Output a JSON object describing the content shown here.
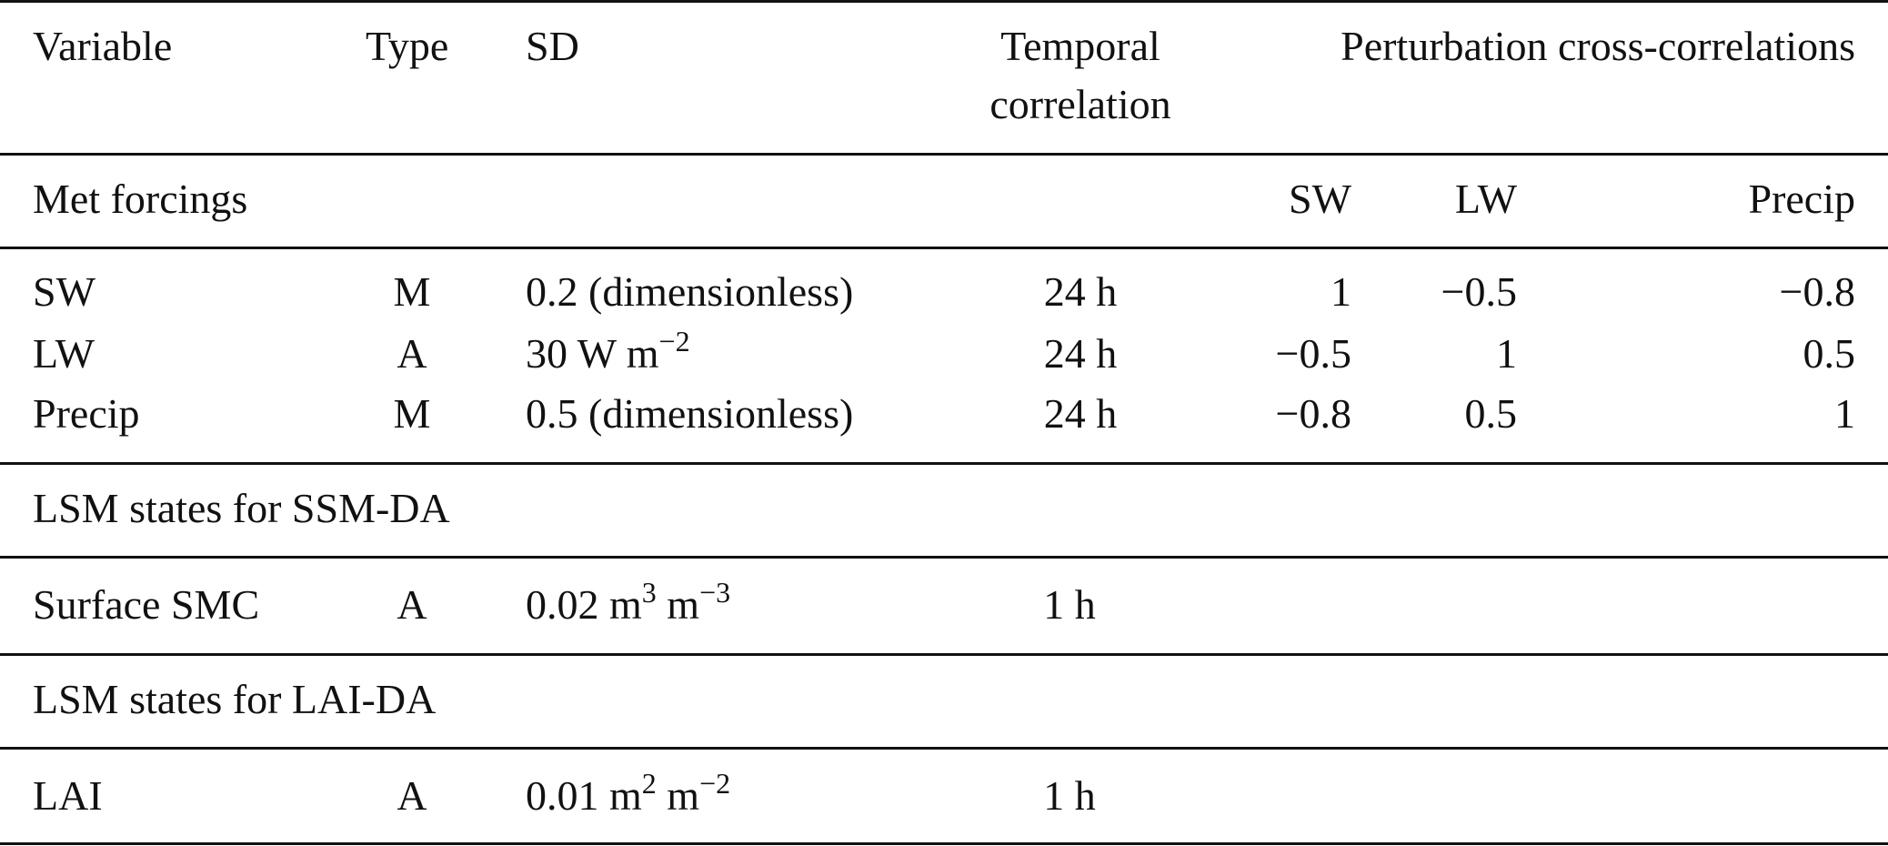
{
  "header": {
    "variable": "Variable",
    "type": "Type",
    "sd": "SD",
    "temporal_line1": "Temporal",
    "temporal_line2": "correlation",
    "perturbation": "Perturbation cross-correlations"
  },
  "sections": {
    "met_forcings": {
      "title": "Met forcings",
      "col_sw": "SW",
      "col_lw": "LW",
      "col_precip": "Precip",
      "rows": [
        {
          "variable": "SW",
          "type": "M",
          "sd": "0.2 (dimensionless)",
          "temporal": "24 h",
          "sw": "1",
          "lw": "−0.5",
          "precip": "−0.8"
        },
        {
          "variable": "LW",
          "type": "A",
          "sd_base": "30 W m",
          "sd_sup": "−2",
          "temporal": "24 h",
          "sw": "−0.5",
          "lw": "1",
          "precip": "0.5"
        },
        {
          "variable": "Precip",
          "type": "M",
          "sd": "0.5 (dimensionless)",
          "temporal": "24 h",
          "sw": "−0.8",
          "lw": "0.5",
          "precip": "1"
        }
      ]
    },
    "ssm_da": {
      "title": "LSM states for SSM-DA",
      "row": {
        "variable": "Surface SMC",
        "type": "A",
        "sd_a": "0.02 m",
        "sd_sup1": "3",
        "sd_b": " m",
        "sd_sup2": "−3",
        "temporal": "1 h"
      }
    },
    "lai_da": {
      "title": "LSM states for LAI-DA",
      "row": {
        "variable": "LAI",
        "type": "A",
        "sd_a": "0.01 m",
        "sd_sup1": "2",
        "sd_b": " m",
        "sd_sup2": "−2",
        "temporal": "1 h"
      }
    }
  }
}
